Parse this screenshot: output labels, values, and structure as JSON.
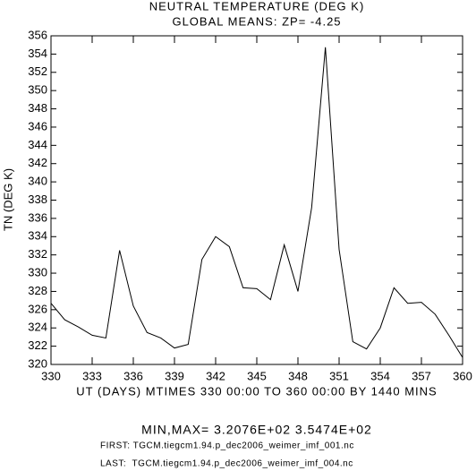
{
  "chart_data": {
    "type": "line",
    "title": "NEUTRAL TEMPERATURE (DEG K)",
    "subtitle": "GLOBAL MEANS: ZP= -4.25",
    "x_label": "UT (DAYS) MTIMES 330 00:00 TO 360 00:00 BY 1440 MINS",
    "y_label": "TN (DEG K)",
    "x": [
      330,
      331,
      332,
      333,
      334,
      335,
      336,
      337,
      338,
      339,
      340,
      341,
      342,
      343,
      344,
      345,
      346,
      347,
      348,
      349,
      350,
      351,
      352,
      353,
      354,
      355,
      356,
      357,
      358,
      359,
      360
    ],
    "values": [
      326.7,
      324.9,
      324.1,
      323.2,
      322.9,
      332.5,
      326.4,
      323.5,
      322.9,
      321.8,
      322.2,
      331.5,
      334.0,
      332.9,
      328.4,
      328.3,
      327.1,
      333.1,
      328.0,
      337.2,
      354.74,
      332.6,
      322.5,
      321.7,
      324.0,
      328.4,
      326.7,
      326.8,
      325.5,
      323.2,
      320.76
    ],
    "color": "#000000",
    "xlim": [
      330,
      360
    ],
    "xticks": [
      330,
      333,
      336,
      339,
      342,
      345,
      348,
      351,
      354,
      357,
      360
    ],
    "ylim": [
      320,
      356
    ],
    "yticks": [
      320,
      322,
      324,
      326,
      328,
      330,
      332,
      334,
      336,
      338,
      340,
      342,
      344,
      346,
      348,
      350,
      352,
      354,
      356
    ],
    "annotations": [
      "MIN,MAX=  3.2076E+02  3.5474E+02",
      "FIRST: TGCM.tiegcm1.94.p_dec2006_weimer_imf_001.nc",
      "LAST:  TGCM.tiegcm1.94.p_dec2006_weimer_imf_004.nc"
    ]
  }
}
